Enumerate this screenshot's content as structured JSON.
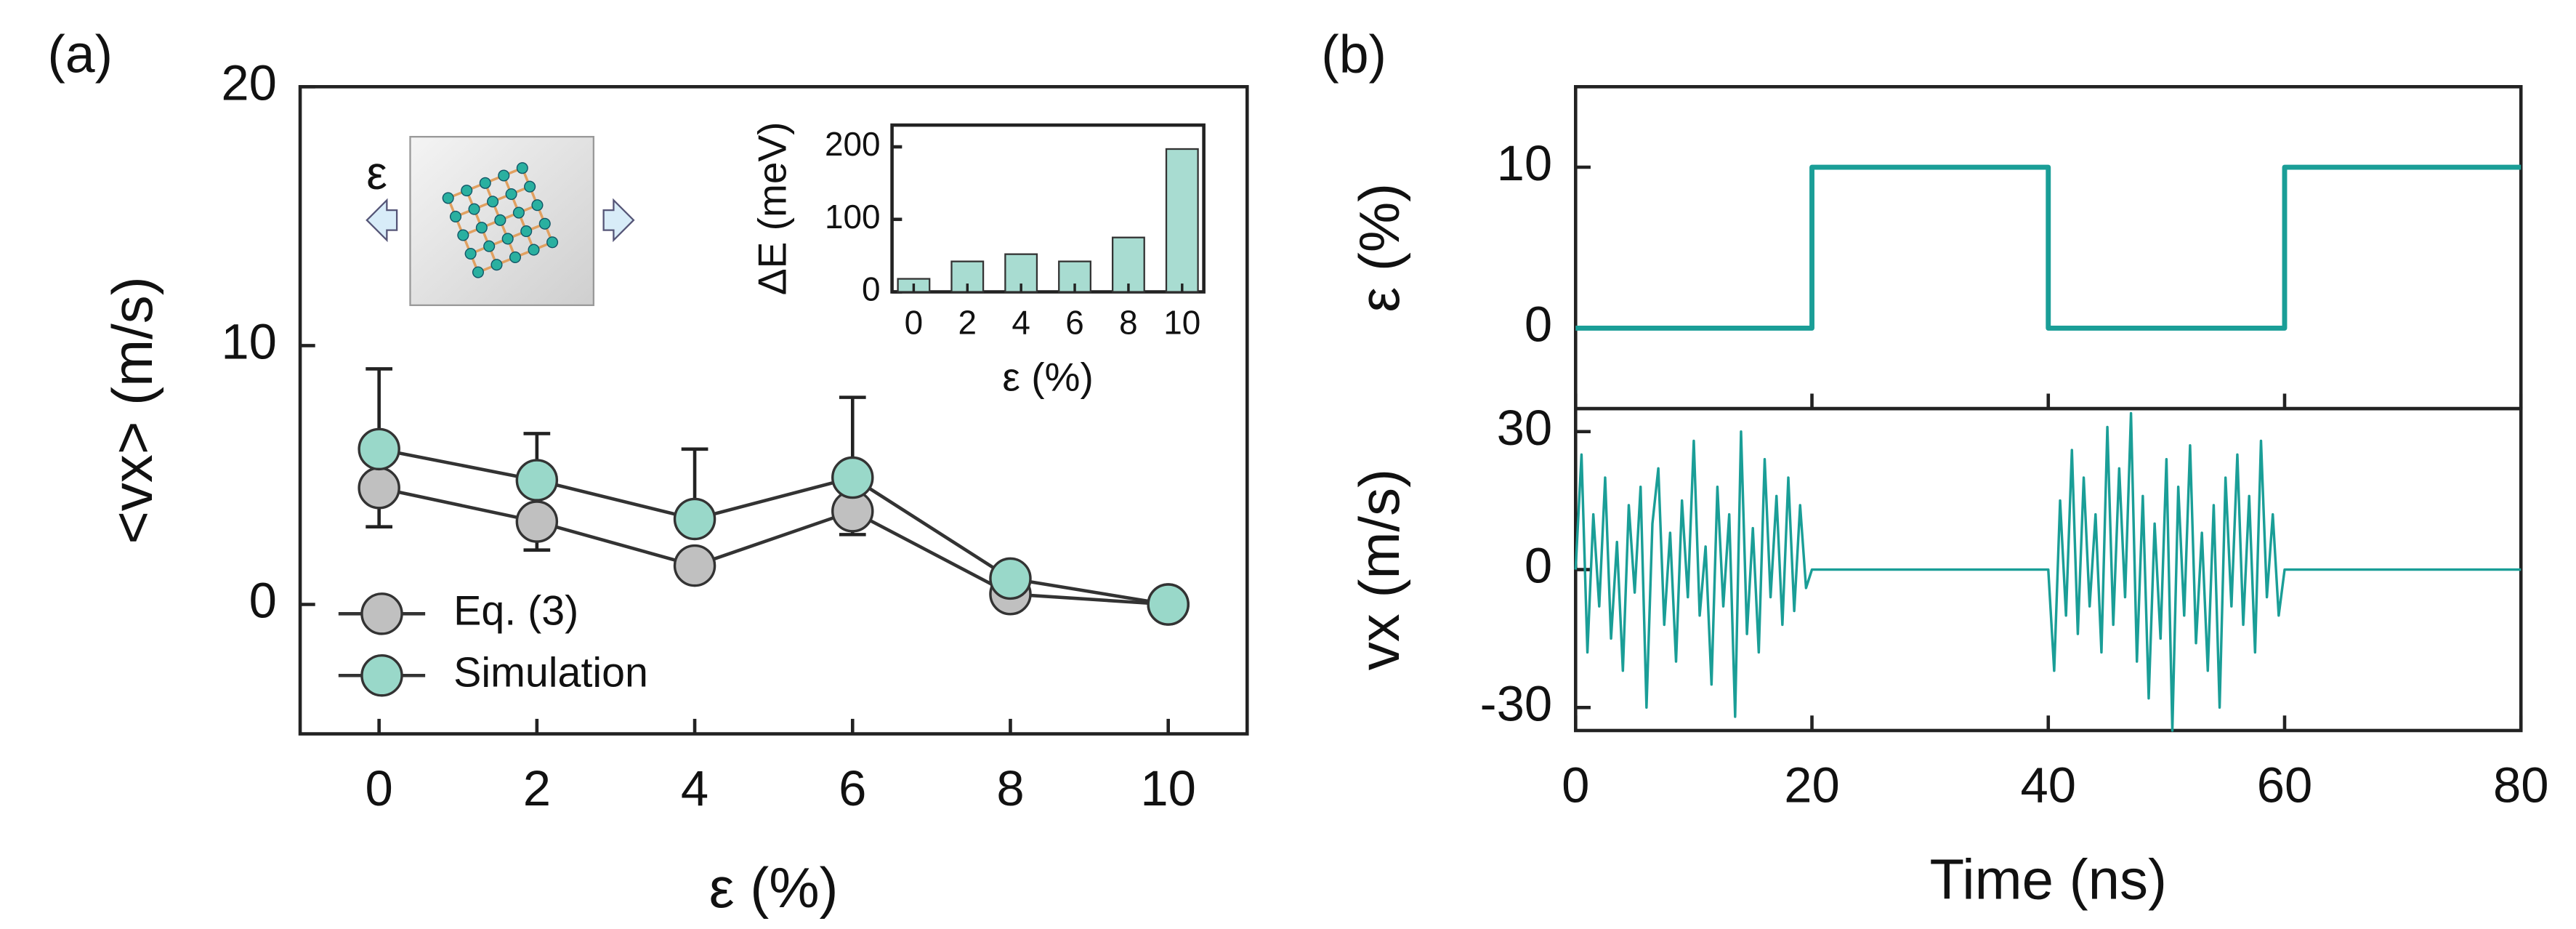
{
  "chart_data": [
    {
      "type": "scatter",
      "panel_label": "(a)",
      "xlabel": "ε (%)",
      "ylabel": "<vx> (m/s)",
      "annotations": [
        "ε"
      ],
      "x": [
        0,
        2,
        4,
        6,
        8,
        10
      ],
      "xlim": [
        -1,
        11
      ],
      "xticks": [
        0,
        2,
        4,
        6,
        8,
        10
      ],
      "ylim": [
        -5,
        20
      ],
      "yticks": [
        0,
        10,
        20
      ],
      "legend": "lower left",
      "series": [
        {
          "name": "Eq. (3)",
          "color": "#c0c0c0",
          "error_side": "lower",
          "values": [
            4.5,
            3.2,
            1.5,
            3.6,
            0.4,
            0.0
          ],
          "errors": [
            1.5,
            1.1,
            0.5,
            0.9,
            0.3,
            0.3
          ]
        },
        {
          "name": "Simulation",
          "color": "#99d8c9",
          "error_side": "upper",
          "values": [
            6.0,
            4.8,
            3.3,
            4.9,
            1.0,
            0.0
          ],
          "errors": [
            3.1,
            1.8,
            2.7,
            3.1,
            0.5,
            0.3
          ]
        }
      ]
    },
    {
      "type": "bar",
      "xlabel": "ε (%)",
      "ylabel": "ΔE (meV)",
      "categories": [
        "0",
        "2",
        "4",
        "6",
        "8",
        "10"
      ],
      "values": [
        18,
        42,
        52,
        42,
        75,
        197
      ],
      "color": "#a8dcd1",
      "ylim": [
        0,
        230
      ],
      "yticks": [
        0,
        100,
        200
      ]
    },
    {
      "type": "line",
      "panel_label": "(b)",
      "ylabel": "ε (%)",
      "color": "#1a9e97",
      "x": [
        0,
        20,
        20,
        40,
        40,
        60,
        60,
        80
      ],
      "values": [
        0,
        0,
        10,
        10,
        0,
        0,
        10,
        10
      ],
      "xlim": [
        0,
        80
      ],
      "xticks": [
        0,
        20,
        40,
        60,
        80
      ],
      "xtick_labels": false,
      "ylim": [
        -5,
        15
      ],
      "yticks": [
        0,
        10
      ]
    },
    {
      "type": "line",
      "xlabel": "Time (ns)",
      "ylabel": "vx (m/s)",
      "color": "#1a9e97",
      "x": [
        0,
        0.5,
        1,
        1.5,
        2,
        2.5,
        3,
        3.5,
        4,
        4.5,
        5,
        5.5,
        6,
        6.5,
        7,
        7.5,
        8,
        8.5,
        9,
        9.5,
        10,
        10.5,
        11,
        11.5,
        12,
        12.5,
        13,
        13.5,
        14,
        14.5,
        15,
        15.5,
        16,
        16.5,
        17,
        17.5,
        18,
        18.5,
        19,
        19.5,
        20,
        20.5,
        39.5,
        40,
        40.5,
        41,
        41.5,
        42,
        42.5,
        43,
        43.5,
        44,
        44.5,
        45,
        45.5,
        46,
        46.5,
        47,
        47.5,
        48,
        48.5,
        49,
        49.5,
        50,
        50.5,
        51,
        51.5,
        52,
        52.5,
        53,
        53.5,
        54,
        54.5,
        55,
        55.5,
        56,
        56.5,
        57,
        57.5,
        58,
        58.5,
        59,
        59.5,
        60,
        60.5,
        80
      ],
      "values": [
        0,
        25,
        -18,
        12,
        -8,
        20,
        -15,
        6,
        -22,
        14,
        -5,
        18,
        -30,
        10,
        22,
        -12,
        8,
        -20,
        15,
        -6,
        28,
        -10,
        5,
        -25,
        18,
        -8,
        12,
        -32,
        30,
        -14,
        9,
        -18,
        24,
        -6,
        16,
        -12,
        20,
        -9,
        14,
        -4,
        0,
        0,
        0,
        0,
        -22,
        15,
        -10,
        26,
        -14,
        20,
        -8,
        12,
        -18,
        31,
        -12,
        22,
        -6,
        34,
        -20,
        16,
        -28,
        10,
        -15,
        24,
        -35,
        18,
        -10,
        27,
        -16,
        8,
        -22,
        14,
        -30,
        20,
        -8,
        25,
        -12,
        16,
        -18,
        28,
        -6,
        12,
        -10,
        0,
        0,
        0
      ],
      "xlim": [
        0,
        80
      ],
      "xticks": [
        0,
        20,
        40,
        60,
        80
      ],
      "ylim": [
        -35,
        35
      ],
      "yticks": [
        -30,
        0,
        30
      ]
    }
  ]
}
